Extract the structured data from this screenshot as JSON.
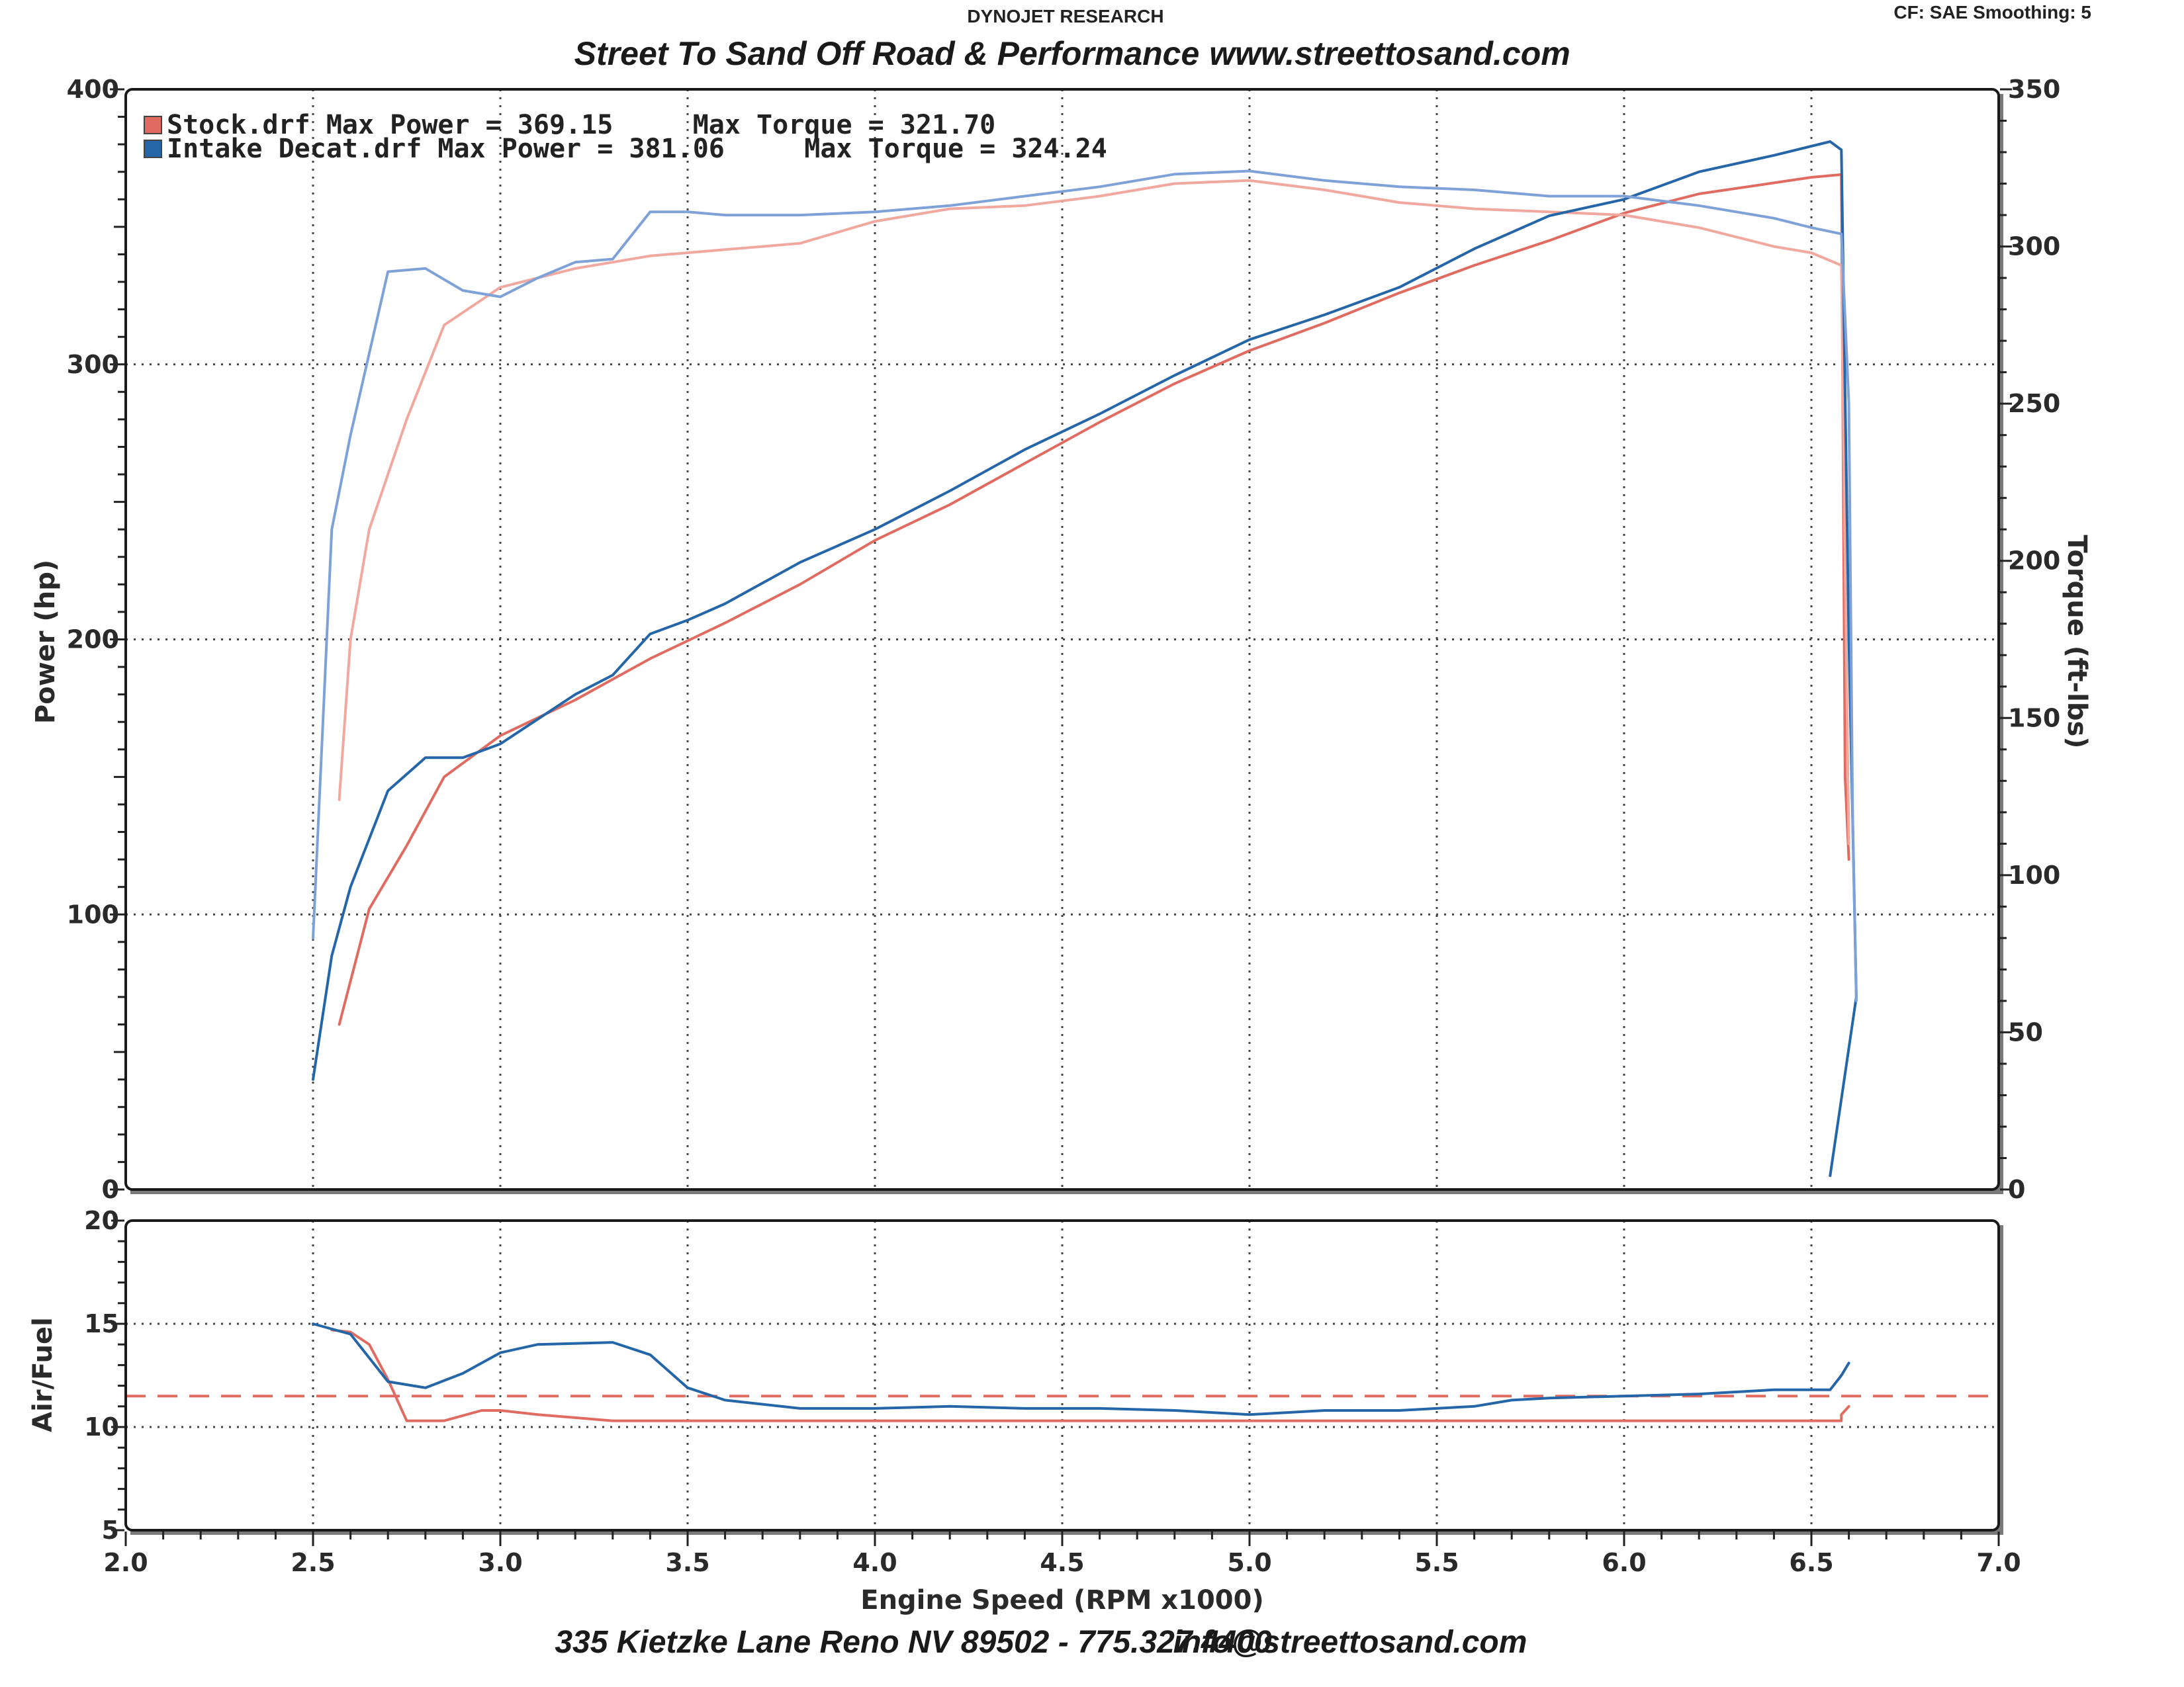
{
  "header": {
    "brand": "DYNOJET RESEARCH",
    "settings": "CF: SAE  Smoothing: 5",
    "shop_name": "Street  To  Sand  Off  Road  &  Performance",
    "website": "www.streettosand.com"
  },
  "footer": {
    "address": "335 Kietzke Lane Reno NV 89502 - 775.327.4400",
    "email": "info@streettosand.com"
  },
  "colors": {
    "stock": "#e06b61",
    "stock_light": "#f0a89f",
    "intake": "#2566a8",
    "intake_light": "#7ea2d8"
  },
  "legend": [
    {
      "text": "Stock.drf Max Power = 369.15     Max Torque = 321.70",
      "color": "#e06b61"
    },
    {
      "text": "Intake Decat.drf Max Power = 381.06     Max Torque = 324.24",
      "color": "#2566a8"
    }
  ],
  "chart_data": [
    {
      "type": "line",
      "panel": "power-torque",
      "xlabel": "Engine Speed (RPM x1000)",
      "ylabel": "Power (hp)",
      "y2label": "Torque (ft-lbs)",
      "xlim": [
        2.0,
        7.0
      ],
      "ylim": [
        0,
        400
      ],
      "y2lim": [
        0,
        350
      ],
      "x_ticks": [
        "2.0",
        "2.5",
        "3.0",
        "3.5",
        "4.0",
        "4.5",
        "5.0",
        "5.5",
        "6.0",
        "6.5",
        "7.0"
      ],
      "y_ticks": [
        "0",
        "100",
        "200",
        "300",
        "400"
      ],
      "y2_ticks": [
        "0",
        "50",
        "100",
        "150",
        "200",
        "250",
        "300",
        "350"
      ],
      "grid": true,
      "legend_position": "top-left",
      "series": [
        {
          "name": "Stock.drf",
          "measure": "Power",
          "axis": "left",
          "color": "#e06b61",
          "x": [
            2.57,
            2.65,
            2.75,
            2.85,
            3.0,
            3.2,
            3.4,
            3.6,
            3.8,
            4.0,
            4.2,
            4.4,
            4.6,
            4.8,
            5.0,
            5.2,
            5.4,
            5.6,
            5.8,
            6.0,
            6.2,
            6.4,
            6.5,
            6.58,
            6.59,
            6.6
          ],
          "y": [
            60,
            102,
            125,
            150,
            165,
            178,
            193,
            206,
            220,
            236,
            249,
            264,
            279,
            293,
            305,
            315,
            326,
            336,
            345,
            355,
            362,
            366,
            368,
            369,
            150,
            120
          ]
        },
        {
          "name": "Stock.drf",
          "measure": "Torque",
          "axis": "right",
          "color": "#f0a89f",
          "x": [
            2.57,
            2.6,
            2.65,
            2.75,
            2.85,
            3.0,
            3.2,
            3.4,
            3.6,
            3.8,
            4.0,
            4.2,
            4.4,
            4.6,
            4.8,
            5.0,
            5.2,
            5.4,
            5.6,
            5.8,
            6.0,
            6.2,
            6.4,
            6.5,
            6.58,
            6.59,
            6.6
          ],
          "y": [
            124,
            175,
            210,
            245,
            275,
            287,
            293,
            297,
            299,
            301,
            308,
            312,
            313,
            316,
            320,
            321,
            318,
            314,
            312,
            311,
            310,
            306,
            300,
            298,
            294,
            200,
            110
          ]
        },
        {
          "name": "Intake Decat.drf",
          "measure": "Power",
          "axis": "left",
          "color": "#2566a8",
          "x": [
            2.5,
            2.55,
            2.6,
            2.7,
            2.8,
            2.9,
            3.0,
            3.1,
            3.2,
            3.3,
            3.4,
            3.5,
            3.6,
            3.8,
            4.0,
            4.2,
            4.4,
            4.6,
            4.8,
            5.0,
            5.2,
            5.4,
            5.6,
            5.8,
            6.0,
            6.2,
            6.4,
            6.55,
            6.58,
            6.6,
            6.62,
            6.55
          ],
          "y": [
            40,
            85,
            110,
            145,
            157,
            157,
            162,
            171,
            180,
            187,
            202,
            207,
            213,
            228,
            240,
            254,
            269,
            282,
            296,
            309,
            318,
            328,
            342,
            354,
            360,
            370,
            376,
            381,
            378,
            200,
            70,
            5
          ]
        },
        {
          "name": "Intake Decat.drf",
          "measure": "Torque",
          "axis": "right",
          "color": "#7ea2d8",
          "x": [
            2.5,
            2.55,
            2.6,
            2.7,
            2.8,
            2.9,
            3.0,
            3.1,
            3.2,
            3.3,
            3.4,
            3.5,
            3.6,
            3.8,
            4.0,
            4.2,
            4.4,
            4.6,
            4.8,
            5.0,
            5.2,
            5.4,
            5.6,
            5.8,
            6.0,
            6.2,
            6.4,
            6.5,
            6.58,
            6.6,
            6.61,
            6.62
          ],
          "y": [
            80,
            210,
            240,
            292,
            293,
            286,
            284,
            290,
            295,
            296,
            311,
            311,
            310,
            310,
            311,
            313,
            316,
            319,
            323,
            324,
            321,
            319,
            318,
            316,
            316,
            313,
            309,
            306,
            304,
            250,
            120,
            60
          ]
        }
      ]
    },
    {
      "type": "line",
      "panel": "air-fuel",
      "xlabel": "Engine Speed (RPM x1000)",
      "ylabel": "Air/Fuel",
      "xlim": [
        2.0,
        7.0
      ],
      "ylim": [
        5,
        20
      ],
      "x_ticks": [
        "2.0",
        "2.5",
        "3.0",
        "3.5",
        "4.0",
        "4.5",
        "5.0",
        "5.5",
        "6.0",
        "6.5",
        "7.0"
      ],
      "y_ticks": [
        "5",
        "10",
        "15",
        "20"
      ],
      "grid": true,
      "reference_line": {
        "y": 11.5,
        "style": "dashed",
        "color": "#e06b61"
      },
      "series": [
        {
          "name": "Stock.drf",
          "color": "#e06b61",
          "x": [
            2.55,
            2.6,
            2.65,
            2.7,
            2.75,
            2.85,
            2.95,
            3.0,
            3.1,
            3.3,
            3.5,
            3.7,
            4.0,
            4.5,
            5.0,
            5.5,
            6.0,
            6.4,
            6.58,
            6.58,
            6.6
          ],
          "y": [
            14.7,
            14.6,
            14.0,
            12.3,
            10.3,
            10.3,
            10.8,
            10.8,
            10.6,
            10.3,
            10.3,
            10.3,
            10.3,
            10.3,
            10.3,
            10.3,
            10.3,
            10.3,
            10.3,
            10.6,
            11.0
          ]
        },
        {
          "name": "Intake Decat.drf",
          "color": "#2566a8",
          "x": [
            2.5,
            2.6,
            2.7,
            2.8,
            2.9,
            3.0,
            3.1,
            3.3,
            3.4,
            3.5,
            3.6,
            3.8,
            4.0,
            4.2,
            4.4,
            4.6,
            4.8,
            5.0,
            5.2,
            5.4,
            5.6,
            5.7,
            5.8,
            6.0,
            6.2,
            6.4,
            6.55,
            6.58,
            6.6
          ],
          "y": [
            15.0,
            14.5,
            12.2,
            11.9,
            12.6,
            13.6,
            14.0,
            14.1,
            13.5,
            11.9,
            11.3,
            10.9,
            10.9,
            11.0,
            10.9,
            10.9,
            10.8,
            10.6,
            10.8,
            10.8,
            11.0,
            11.3,
            11.4,
            11.5,
            11.6,
            11.8,
            11.8,
            12.5,
            13.1
          ]
        }
      ]
    }
  ]
}
